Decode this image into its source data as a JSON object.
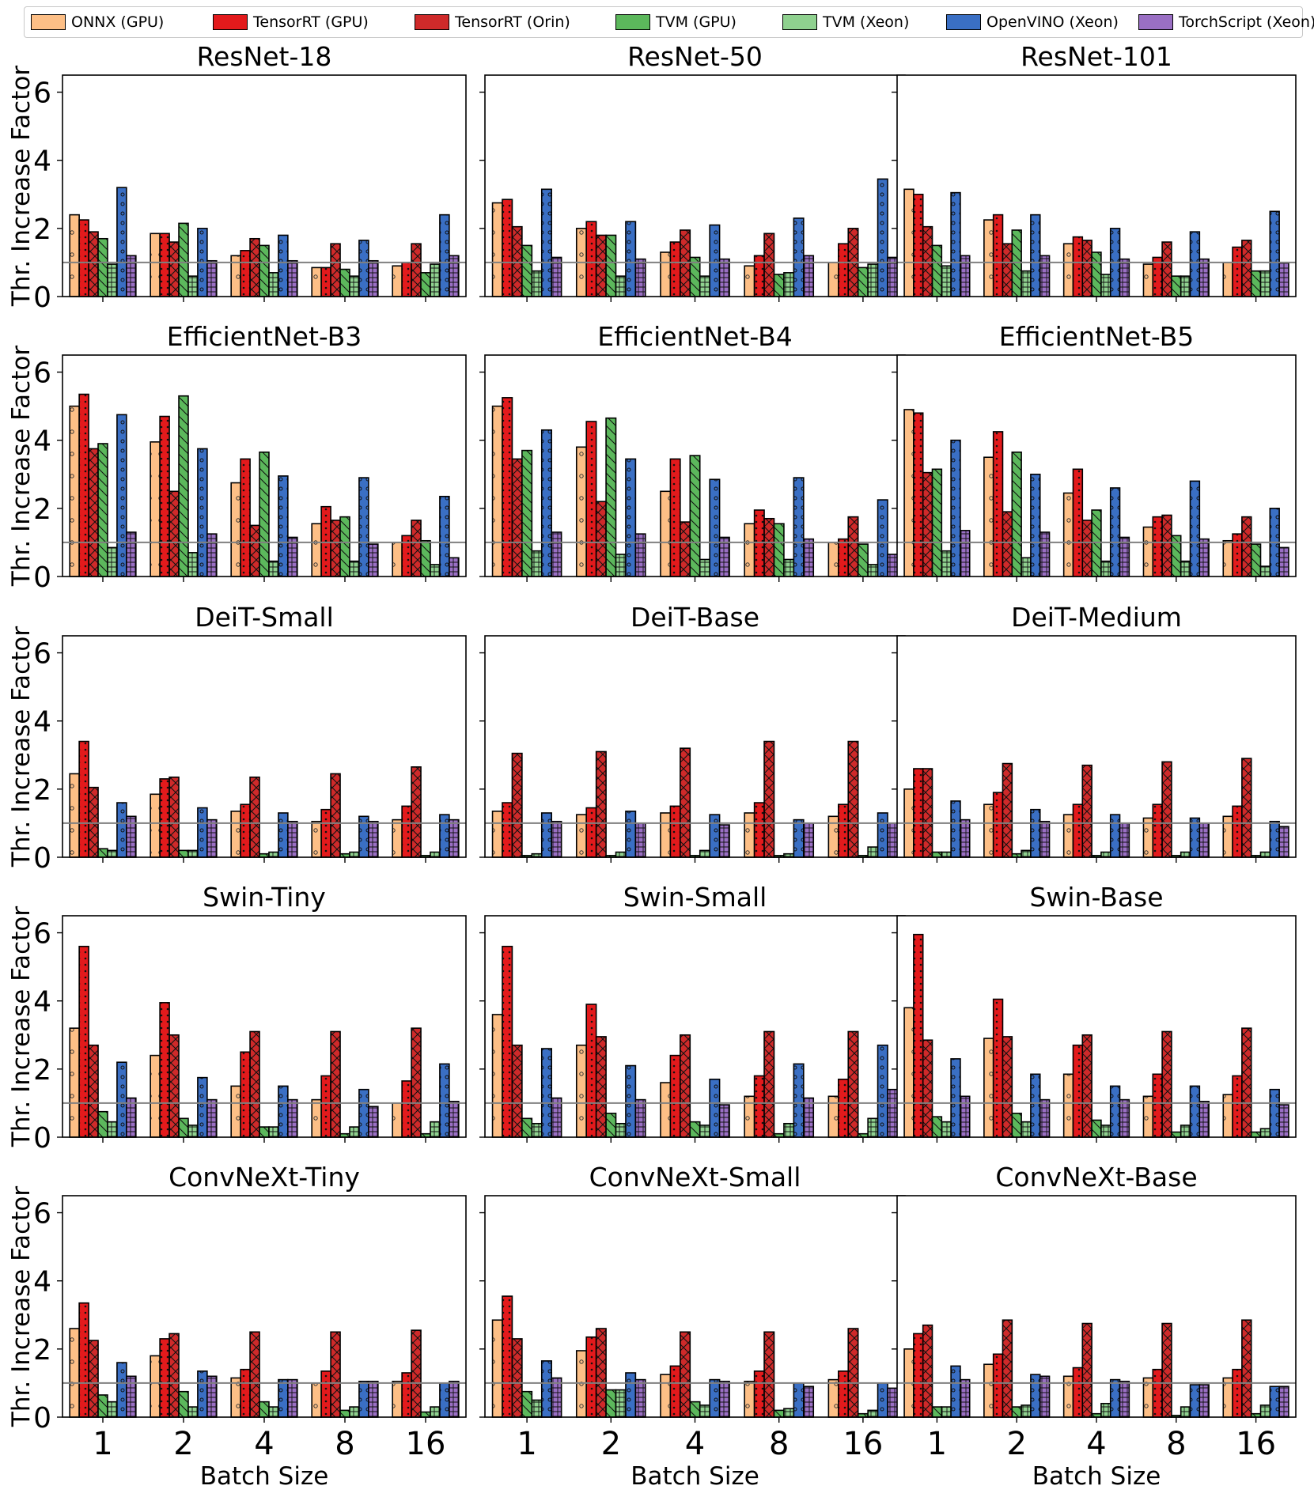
{
  "legend": [
    {
      "name": "ONNX (GPU)",
      "color": "#fdbf86",
      "hatch": "dots-sparse"
    },
    {
      "name": "TensorRT (GPU)",
      "color": "#e31a1c",
      "hatch": "dots"
    },
    {
      "name": "TensorRT (Orin)",
      "color": "#cf2a2a",
      "hatch": "cross"
    },
    {
      "name": "TVM (GPU)",
      "color": "#5cb85c",
      "hatch": "diag"
    },
    {
      "name": "TVM (Xeon)",
      "color": "#8fd18f",
      "hatch": "grid"
    },
    {
      "name": "OpenVINO (Xeon)",
      "color": "#3a6fc4",
      "hatch": "circles"
    },
    {
      "name": "TorchScript (Xeon)",
      "color": "#9a6fc4",
      "hatch": "grid"
    }
  ],
  "chart_data": {
    "type": "bar",
    "ylabel": "Thr. Increase Factor",
    "xlabel": "Batch Size",
    "categories": [
      "1",
      "2",
      "4",
      "8",
      "16"
    ],
    "ylim": [
      0,
      6.5
    ],
    "yticks": [
      "0",
      "2",
      "4",
      "6"
    ],
    "reference_line": 1.0,
    "series_order": [
      "ONNX (GPU)",
      "TensorRT (GPU)",
      "TensorRT (Orin)",
      "TVM (GPU)",
      "TVM (Xeon)",
      "OpenVINO (Xeon)",
      "TorchScript (Xeon)"
    ],
    "panels": [
      {
        "title": "ResNet-18",
        "values": [
          [
            2.4,
            2.25,
            1.9,
            1.7,
            0.95,
            3.2,
            1.2
          ],
          [
            1.85,
            1.85,
            1.6,
            2.15,
            0.6,
            2.0,
            1.05
          ],
          [
            1.2,
            1.35,
            1.7,
            1.5,
            0.7,
            1.8,
            1.05
          ],
          [
            0.85,
            0.85,
            1.55,
            0.8,
            0.6,
            1.65,
            1.05
          ],
          [
            0.9,
            1.0,
            1.55,
            0.7,
            0.95,
            2.4,
            1.2
          ]
        ]
      },
      {
        "title": "ResNet-50",
        "values": [
          [
            2.75,
            2.85,
            2.05,
            1.5,
            0.75,
            3.15,
            1.15
          ],
          [
            2.0,
            2.2,
            1.8,
            1.8,
            0.6,
            2.2,
            1.1
          ],
          [
            1.3,
            1.6,
            1.95,
            1.15,
            0.6,
            2.1,
            1.1
          ],
          [
            0.9,
            1.2,
            1.85,
            0.65,
            0.7,
            2.3,
            1.2
          ],
          [
            1.0,
            1.55,
            2.0,
            0.85,
            0.95,
            3.45,
            1.15
          ]
        ]
      },
      {
        "title": "ResNet-101",
        "values": [
          [
            3.15,
            3.0,
            2.05,
            1.5,
            0.9,
            3.05,
            1.2
          ],
          [
            2.25,
            2.4,
            1.55,
            1.95,
            0.75,
            2.4,
            1.2
          ],
          [
            1.55,
            1.75,
            1.65,
            1.3,
            0.65,
            2.0,
            1.1
          ],
          [
            0.95,
            1.15,
            1.6,
            0.6,
            0.6,
            1.9,
            1.1
          ],
          [
            1.0,
            1.45,
            1.65,
            0.75,
            0.75,
            2.5,
            1.0
          ]
        ]
      },
      {
        "title": "EfficientNet-B3",
        "values": [
          [
            5.0,
            5.35,
            3.75,
            3.9,
            0.85,
            4.75,
            1.3
          ],
          [
            3.95,
            4.7,
            2.5,
            5.3,
            0.7,
            3.75,
            1.25
          ],
          [
            2.75,
            3.45,
            1.5,
            3.65,
            0.45,
            2.95,
            1.15
          ],
          [
            1.55,
            2.05,
            1.65,
            1.75,
            0.45,
            2.9,
            0.95
          ],
          [
            1.0,
            1.2,
            1.65,
            1.05,
            0.35,
            2.35,
            0.55
          ]
        ]
      },
      {
        "title": "EfficientNet-B4",
        "values": [
          [
            5.0,
            5.25,
            3.45,
            3.7,
            0.75,
            4.3,
            1.3
          ],
          [
            3.8,
            4.55,
            2.2,
            4.65,
            0.65,
            3.45,
            1.25
          ],
          [
            2.5,
            3.45,
            1.6,
            3.55,
            0.5,
            2.85,
            1.15
          ],
          [
            1.55,
            1.95,
            1.7,
            1.55,
            0.5,
            2.9,
            1.1
          ],
          [
            1.0,
            1.1,
            1.75,
            0.95,
            0.35,
            2.25,
            0.65
          ]
        ]
      },
      {
        "title": "EfficientNet-B5",
        "values": [
          [
            4.9,
            4.8,
            3.05,
            3.15,
            0.75,
            4.0,
            1.35
          ],
          [
            3.5,
            4.25,
            1.9,
            3.65,
            0.55,
            3.0,
            1.3
          ],
          [
            2.45,
            3.15,
            1.65,
            1.95,
            0.45,
            2.6,
            1.15
          ],
          [
            1.45,
            1.75,
            1.8,
            1.2,
            0.45,
            2.8,
            1.1
          ],
          [
            1.05,
            1.25,
            1.75,
            0.95,
            0.3,
            2.0,
            0.85
          ]
        ]
      },
      {
        "title": "DeiT-Small",
        "values": [
          [
            2.45,
            3.4,
            2.05,
            0.25,
            0.2,
            1.6,
            1.2
          ],
          [
            1.85,
            2.3,
            2.35,
            0.2,
            0.2,
            1.45,
            1.1
          ],
          [
            1.35,
            1.55,
            2.35,
            0.1,
            0.15,
            1.3,
            1.05
          ],
          [
            1.05,
            1.4,
            2.45,
            0.1,
            0.15,
            1.2,
            1.05
          ],
          [
            1.1,
            1.5,
            2.65,
            0.05,
            0.15,
            1.25,
            1.1
          ]
        ]
      },
      {
        "title": "DeiT-Base",
        "values": [
          [
            1.35,
            1.6,
            3.05,
            0.05,
            0.1,
            1.3,
            1.05
          ],
          [
            1.25,
            1.45,
            3.1,
            0.05,
            0.15,
            1.35,
            1.0
          ],
          [
            1.3,
            1.5,
            3.2,
            0.05,
            0.2,
            1.25,
            0.95
          ],
          [
            1.3,
            1.6,
            3.4,
            0.05,
            0.1,
            1.1,
            1.0
          ],
          [
            1.2,
            1.55,
            3.4,
            0.05,
            0.3,
            1.3,
            1.0
          ]
        ]
      },
      {
        "title": "DeiT-Medium",
        "values": [
          [
            2.0,
            2.6,
            2.6,
            0.15,
            0.15,
            1.65,
            1.1
          ],
          [
            1.55,
            1.9,
            2.75,
            0.1,
            0.2,
            1.4,
            1.05
          ],
          [
            1.25,
            1.55,
            2.7,
            0.05,
            0.15,
            1.25,
            1.0
          ],
          [
            1.15,
            1.55,
            2.8,
            0.05,
            0.15,
            1.15,
            1.0
          ],
          [
            1.2,
            1.5,
            2.9,
            0.05,
            0.15,
            1.05,
            0.9
          ]
        ]
      },
      {
        "title": "Swin-Tiny",
        "values": [
          [
            3.2,
            5.6,
            2.7,
            0.75,
            0.45,
            2.2,
            1.15
          ],
          [
            2.4,
            3.95,
            3.0,
            0.55,
            0.35,
            1.75,
            1.1
          ],
          [
            1.5,
            2.5,
            3.1,
            0.3,
            0.3,
            1.5,
            1.1
          ],
          [
            1.1,
            1.8,
            3.1,
            0.1,
            0.3,
            1.4,
            0.9
          ],
          [
            1.0,
            1.65,
            3.2,
            0.1,
            0.45,
            2.15,
            1.05
          ]
        ]
      },
      {
        "title": "Swin-Small",
        "values": [
          [
            3.6,
            5.6,
            2.7,
            0.55,
            0.4,
            2.6,
            1.15
          ],
          [
            2.7,
            3.9,
            2.95,
            0.7,
            0.4,
            2.1,
            1.1
          ],
          [
            1.6,
            2.4,
            3.0,
            0.45,
            0.35,
            1.7,
            0.95
          ],
          [
            1.2,
            1.8,
            3.1,
            0.1,
            0.4,
            2.15,
            1.15
          ],
          [
            1.2,
            1.7,
            3.1,
            0.1,
            0.55,
            2.7,
            1.4
          ]
        ]
      },
      {
        "title": "Swin-Base",
        "values": [
          [
            3.8,
            5.95,
            2.85,
            0.6,
            0.45,
            2.3,
            1.2
          ],
          [
            2.9,
            4.05,
            2.95,
            0.7,
            0.45,
            1.85,
            1.1
          ],
          [
            1.85,
            2.7,
            3.0,
            0.5,
            0.35,
            1.5,
            1.1
          ],
          [
            1.2,
            1.85,
            3.1,
            0.15,
            0.35,
            1.5,
            1.05
          ],
          [
            1.25,
            1.8,
            3.2,
            0.15,
            0.25,
            1.4,
            0.95
          ]
        ]
      },
      {
        "title": "ConvNeXt-Tiny",
        "values": [
          [
            2.6,
            3.35,
            2.25,
            0.65,
            0.45,
            1.6,
            1.2
          ],
          [
            1.8,
            2.3,
            2.45,
            0.75,
            0.3,
            1.35,
            1.2
          ],
          [
            1.15,
            1.4,
            2.5,
            0.45,
            0.3,
            1.1,
            1.1
          ],
          [
            1.0,
            1.35,
            2.5,
            0.2,
            0.3,
            1.05,
            1.05
          ],
          [
            1.05,
            1.3,
            2.55,
            0.15,
            0.3,
            1.0,
            1.05
          ]
        ]
      },
      {
        "title": "ConvNeXt-Small",
        "values": [
          [
            2.85,
            3.55,
            2.3,
            0.75,
            0.5,
            1.65,
            1.15
          ],
          [
            1.95,
            2.35,
            2.6,
            0.8,
            0.8,
            1.3,
            1.1
          ],
          [
            1.25,
            1.5,
            2.5,
            0.45,
            0.35,
            1.1,
            1.05
          ],
          [
            1.05,
            1.35,
            2.5,
            0.2,
            0.25,
            1.0,
            0.9
          ],
          [
            1.1,
            1.35,
            2.6,
            0.1,
            0.2,
            1.0,
            0.85
          ]
        ]
      },
      {
        "title": "ConvNeXt-Base",
        "values": [
          [
            2.0,
            2.45,
            2.7,
            0.3,
            0.3,
            1.5,
            1.1
          ],
          [
            1.55,
            1.85,
            2.85,
            0.3,
            0.35,
            1.25,
            1.2
          ],
          [
            1.2,
            1.45,
            2.75,
            0.1,
            0.4,
            1.1,
            1.05
          ],
          [
            1.15,
            1.4,
            2.75,
            0.05,
            0.3,
            0.95,
            0.95
          ],
          [
            1.15,
            1.4,
            2.85,
            0.1,
            0.35,
            0.9,
            0.9
          ]
        ]
      }
    ]
  }
}
